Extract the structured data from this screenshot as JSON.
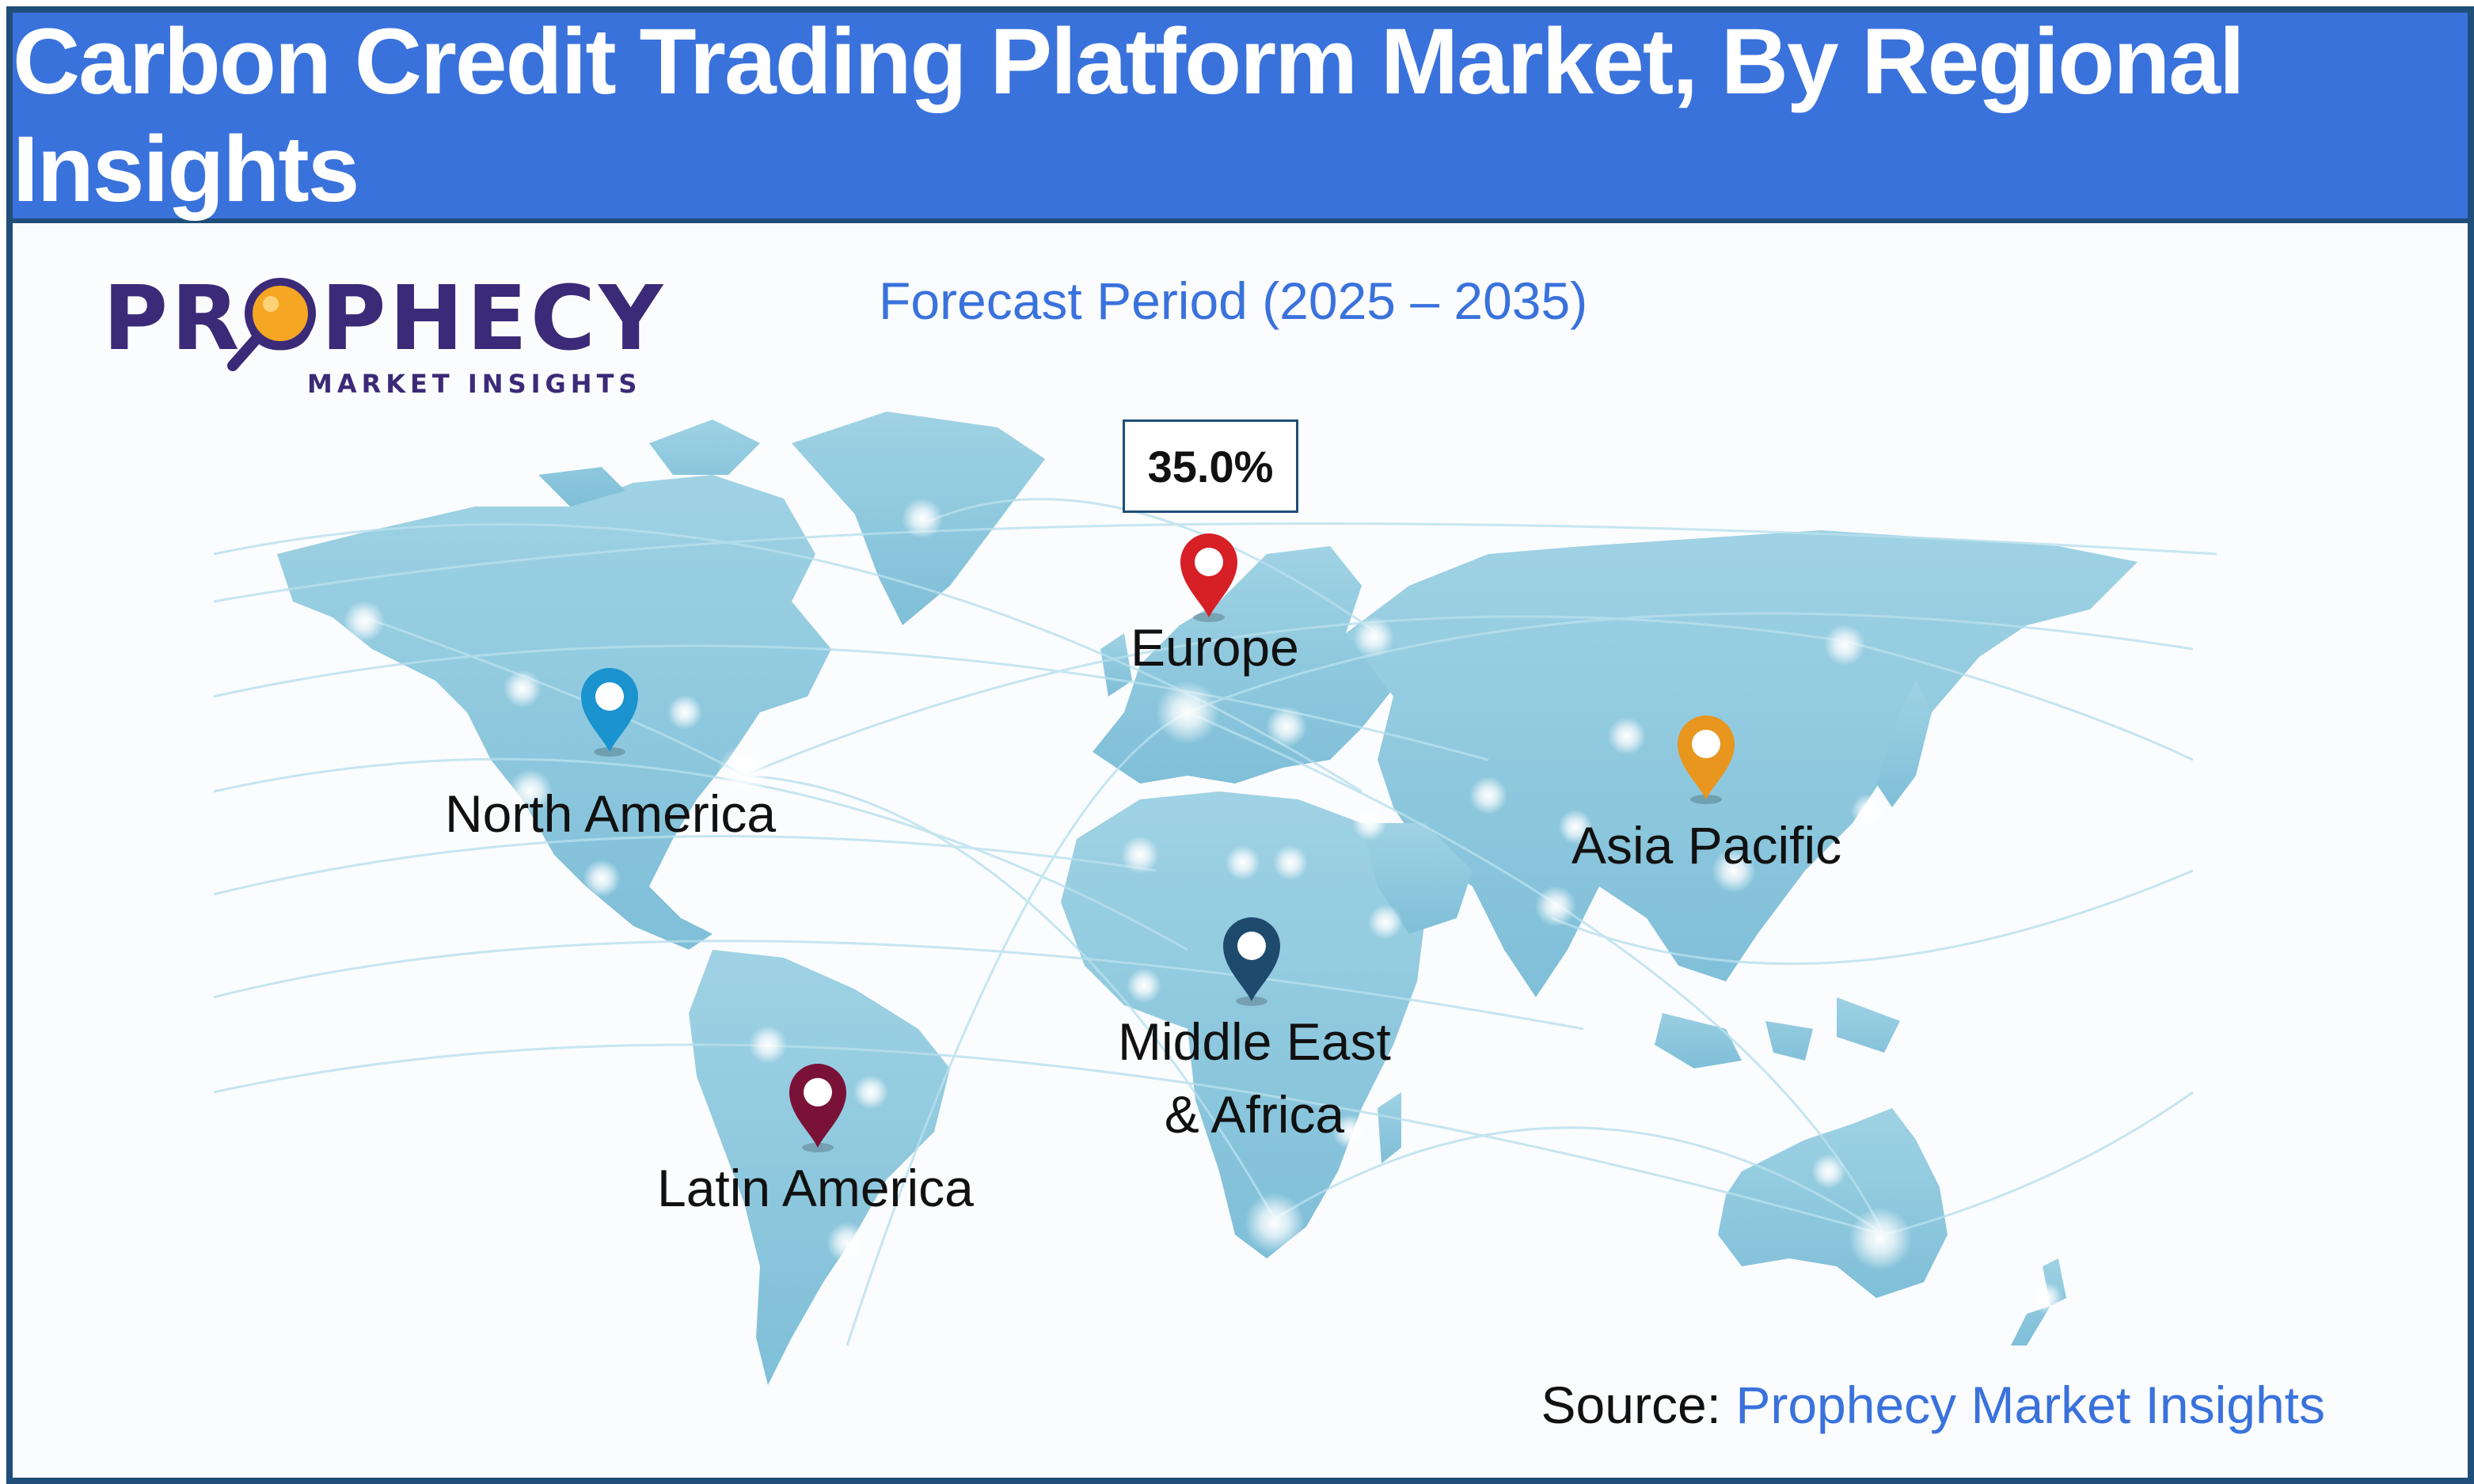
{
  "header": {
    "title": "Carbon Credit Trading Platform Market, By Regional Insights"
  },
  "logo": {
    "word": "PROPHECY",
    "sub": "MARKET INSIGHTS"
  },
  "forecast": "Forecast Period (2025 – 2035)",
  "highlight": {
    "value": "35.0%",
    "region": "Europe"
  },
  "regions": {
    "north_america": {
      "label": "North America",
      "pin_color": "#1a93cf"
    },
    "europe": {
      "label": "Europe",
      "pin_color": "#d71f26"
    },
    "asia_pacific": {
      "label": "Asia Pacific",
      "pin_color": "#e8961e"
    },
    "mea": {
      "line1": "Middle East",
      "line2": "& Africa",
      "pin_color": "#1e4a6e"
    },
    "latin_america": {
      "label": "Latin America",
      "pin_color": "#7a1238"
    }
  },
  "source": {
    "prefix": "Source: ",
    "name": "Prophecy Market Insights"
  },
  "colors": {
    "header": "#3a72dc",
    "border": "#1f4e79",
    "land": "#8cc8de",
    "logo": "#3b2a78",
    "magnifier": "#f5a623"
  }
}
